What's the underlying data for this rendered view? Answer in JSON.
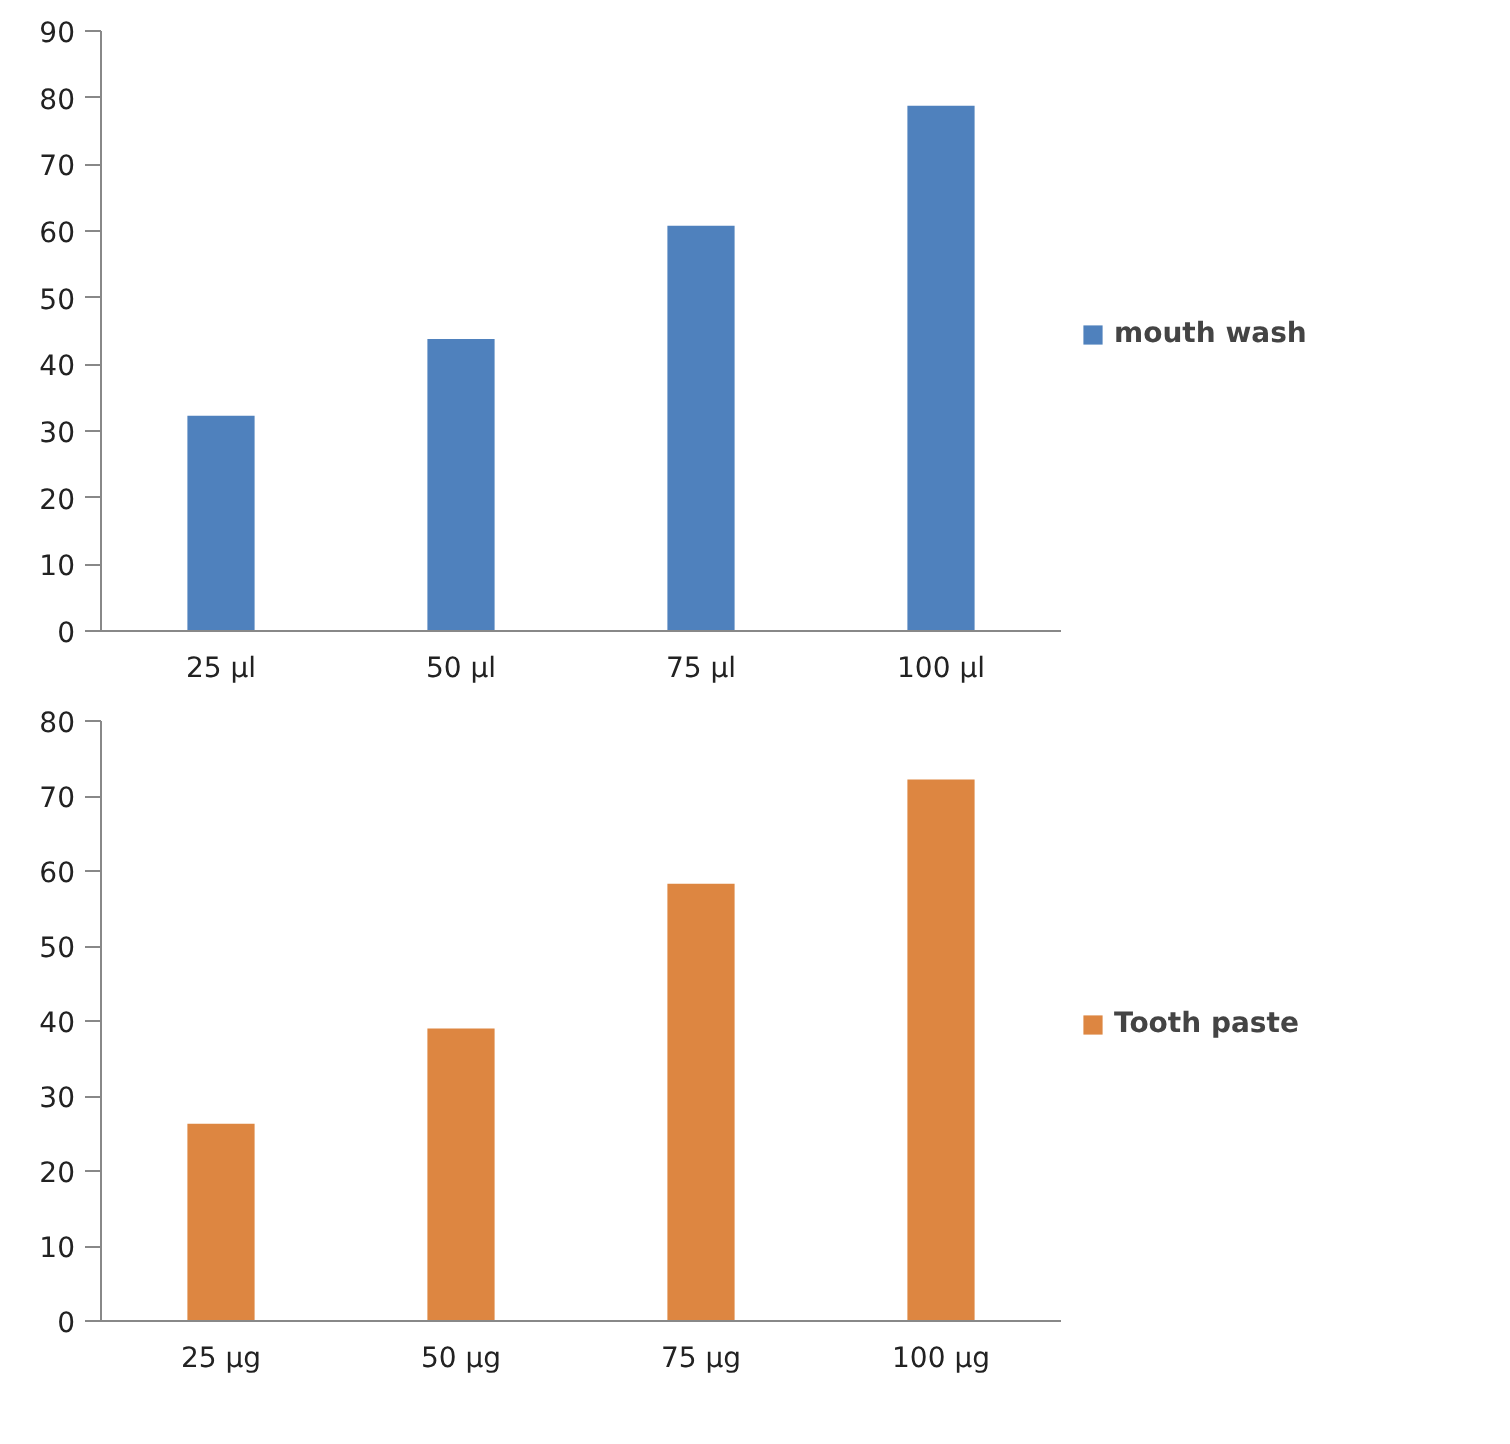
{
  "chart_data": [
    {
      "type": "bar",
      "categories": [
        "25 µl",
        "50 µl",
        "75 µl",
        "100 µl"
      ],
      "series": [
        {
          "name": "mouth wash",
          "color": "#4f81bd",
          "values": [
            32.3,
            43.8,
            60.8,
            78.8
          ]
        }
      ],
      "ylim": [
        0,
        90
      ],
      "yticks": [
        0,
        10,
        20,
        30,
        40,
        50,
        60,
        70,
        80,
        90
      ],
      "grid": false,
      "legend": "right"
    },
    {
      "type": "bar",
      "categories": [
        "25 µg",
        "50 µg",
        "75 µg",
        "100 µg"
      ],
      "series": [
        {
          "name": "Tooth paste",
          "color": "#dd8641",
          "values": [
            26.3,
            39.0,
            58.3,
            72.2
          ]
        }
      ],
      "ylim": [
        0,
        80
      ],
      "yticks": [
        0,
        10,
        20,
        30,
        40,
        50,
        60,
        70,
        80
      ],
      "grid": false,
      "legend": "right"
    }
  ]
}
